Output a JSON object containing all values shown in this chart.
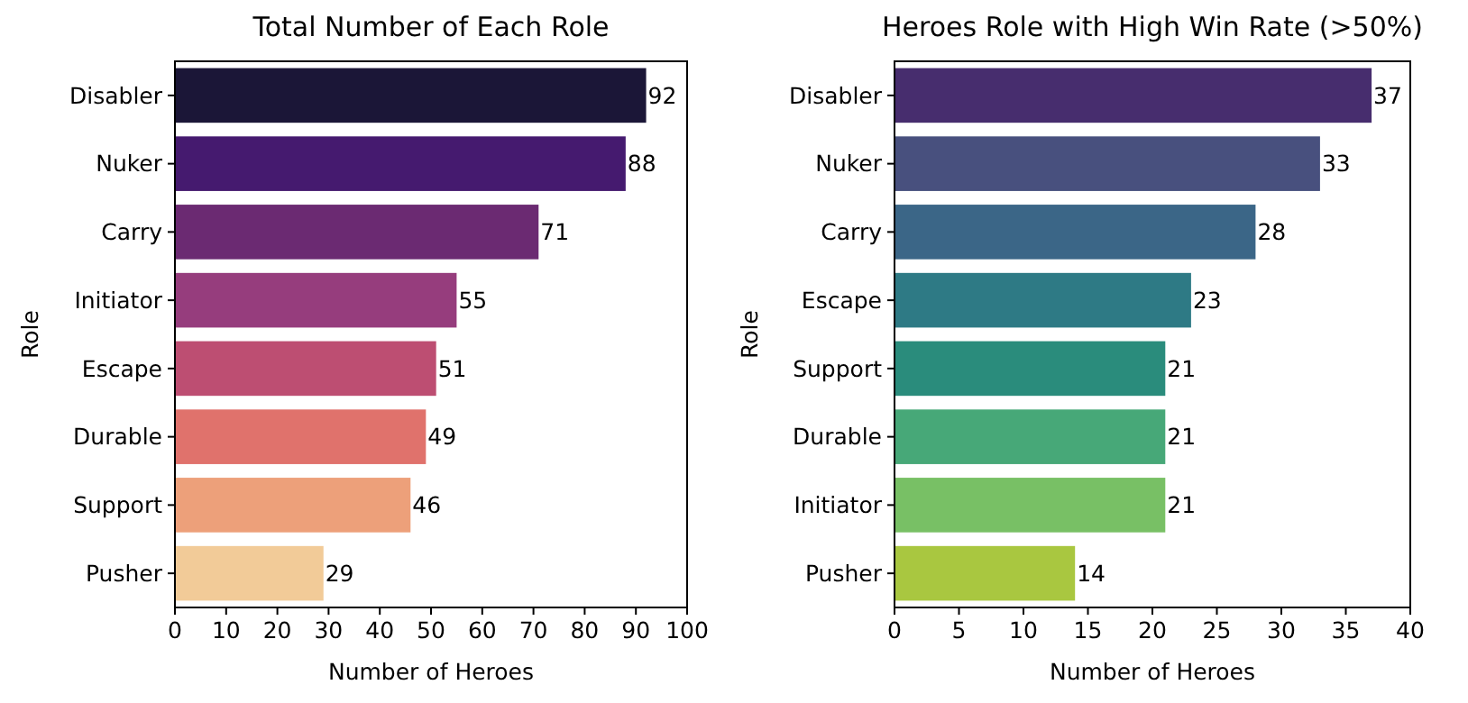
{
  "chart_data": [
    {
      "type": "bar",
      "orientation": "horizontal",
      "title": "Total Number of Each Role",
      "xlabel": "Number of Heroes",
      "ylabel": "Role",
      "categories": [
        "Disabler",
        "Nuker",
        "Carry",
        "Initiator",
        "Escape",
        "Durable",
        "Support",
        "Pusher"
      ],
      "values": [
        92,
        88,
        71,
        55,
        51,
        49,
        46,
        29
      ],
      "colors": [
        "#1b1637",
        "#451a6f",
        "#6b2a72",
        "#963d7d",
        "#bd4e72",
        "#e0726c",
        "#eda07a",
        "#f2cb98"
      ],
      "xlim": [
        0,
        100
      ],
      "xticks": [
        0,
        10,
        20,
        30,
        40,
        50,
        60,
        70,
        80,
        90,
        100
      ],
      "data_labels": true,
      "grid": false
    },
    {
      "type": "bar",
      "orientation": "horizontal",
      "title": "Heroes Role with High Win Rate (>50%)",
      "xlabel": "Number of Heroes",
      "ylabel": "Role",
      "categories": [
        "Disabler",
        "Nuker",
        "Carry",
        "Escape",
        "Support",
        "Durable",
        "Initiator",
        "Pusher"
      ],
      "values": [
        37,
        33,
        28,
        23,
        21,
        21,
        21,
        14
      ],
      "colors": [
        "#472d6e",
        "#48507e",
        "#3b6687",
        "#2e7a85",
        "#2a8c7c",
        "#47a878",
        "#78c065",
        "#a9c740"
      ],
      "xlim": [
        0,
        40
      ],
      "xticks": [
        0,
        5,
        10,
        15,
        20,
        25,
        30,
        35,
        40
      ],
      "data_labels": true,
      "grid": false
    }
  ]
}
